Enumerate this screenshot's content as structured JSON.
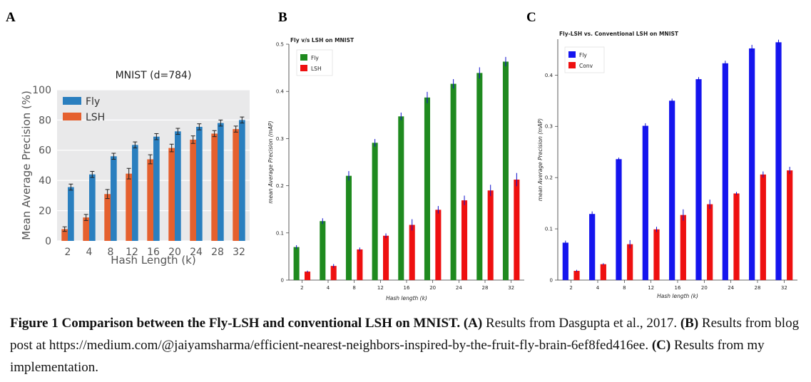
{
  "panels": [
    {
      "letter": "A",
      "chart_data": {
        "type": "bar",
        "title": "MNIST (d=784)",
        "xlabel": "Hash Length (k)",
        "ylabel": "Mean Average Precision (%)",
        "ylim": [
          0,
          100
        ],
        "yticks": [
          0,
          20,
          40,
          60,
          80,
          100
        ],
        "categories": [
          "2",
          "4",
          "8",
          "12",
          "16",
          "20",
          "24",
          "28",
          "32"
        ],
        "series": [
          {
            "name": "Fly",
            "color": "#2a7fbf",
            "values": [
              35.6,
              44,
              56,
              63.5,
              69,
              72.5,
              75.5,
              78,
              80
            ],
            "errors": [
              2,
              2,
              2,
              2,
              2,
              2,
              2,
              2,
              2
            ]
          },
          {
            "name": "LSH",
            "color": "#e5602e",
            "values": [
              7.8,
              15.5,
              31,
              44.5,
              54,
              61.5,
              67,
              71,
              74
            ],
            "errors": [
              1.5,
              2,
              3,
              3.5,
              3,
              2.5,
              2.5,
              2,
              2
            ]
          }
        ],
        "legend": "top-left",
        "grid": true
      }
    },
    {
      "letter": "B",
      "chart_data": {
        "type": "bar",
        "title": "Fly v/s LSH on MNIST",
        "xlabel": "Hash length (k)",
        "ylabel": "mean Average Precision (mAP)",
        "ylim": [
          0,
          0.5
        ],
        "yticks": [
          "0",
          "0.1",
          "0.2",
          "0.3",
          "0.4",
          "0.5"
        ],
        "categories": [
          "2",
          "4",
          "8",
          "12",
          "16",
          "20",
          "24",
          "28",
          "32"
        ],
        "series": [
          {
            "name": "Fly",
            "color": "#1f8a1f",
            "values": [
              0.07,
              0.125,
              0.221,
              0.291,
              0.347,
              0.387,
              0.416,
              0.439,
              0.463
            ],
            "errors": [
              0.004,
              0.006,
              0.01,
              0.008,
              0.008,
              0.012,
              0.01,
              0.012,
              0.01
            ]
          },
          {
            "name": "LSH",
            "color": "#ee1010",
            "values": [
              0.018,
              0.03,
              0.065,
              0.094,
              0.117,
              0.149,
              0.169,
              0.19,
              0.213
            ],
            "errors": [
              0.002,
              0.004,
              0.004,
              0.005,
              0.012,
              0.008,
              0.01,
              0.012,
              0.014
            ]
          }
        ],
        "legend": "top-left",
        "grid": false
      }
    },
    {
      "letter": "C",
      "chart_data": {
        "type": "bar",
        "title": "Fly-LSH vs. Conventional LSH on MNIST",
        "xlabel": "Hash length (k)",
        "ylabel": "mean Average Precision (mAP)",
        "ylim": [
          0,
          0.47
        ],
        "yticks": [
          "0",
          "0.1",
          "0.2",
          "0.3",
          "0.4"
        ],
        "categories": [
          "2",
          "4",
          "8",
          "12",
          "16",
          "20",
          "24",
          "28",
          "32"
        ],
        "series": [
          {
            "name": "Fly",
            "color": "#1515ee",
            "values": [
              0.073,
              0.129,
              0.236,
              0.301,
              0.35,
              0.392,
              0.423,
              0.452,
              0.464
            ],
            "errors": [
              0.004,
              0.005,
              0.003,
              0.005,
              0.004,
              0.004,
              0.005,
              0.007,
              0.005
            ]
          },
          {
            "name": "Conv",
            "color": "#ee1010",
            "values": [
              0.018,
              0.031,
              0.07,
              0.099,
              0.127,
              0.148,
              0.169,
              0.206,
              0.214
            ],
            "errors": [
              0.002,
              0.002,
              0.008,
              0.005,
              0.011,
              0.009,
              0.003,
              0.006,
              0.007
            ]
          }
        ],
        "legend": "top-left",
        "grid": false
      }
    }
  ],
  "caption": {
    "bold_intro": "Figure 1 Comparison between the Fly-LSH and conventional LSH on MNIST.",
    "a_label": "(A)",
    "a_text": "Results from Dasgupta et al., 2017.",
    "b_label": "(B)",
    "b_text": "Results from blog post at https://medium.com/@jaiyamsharma/efficient-nearest-neighbors-inspired-by-the-fruit-fly-brain-6ef8fed416ee.",
    "c_label": "(C)",
    "c_text": "Results from my implementation."
  }
}
